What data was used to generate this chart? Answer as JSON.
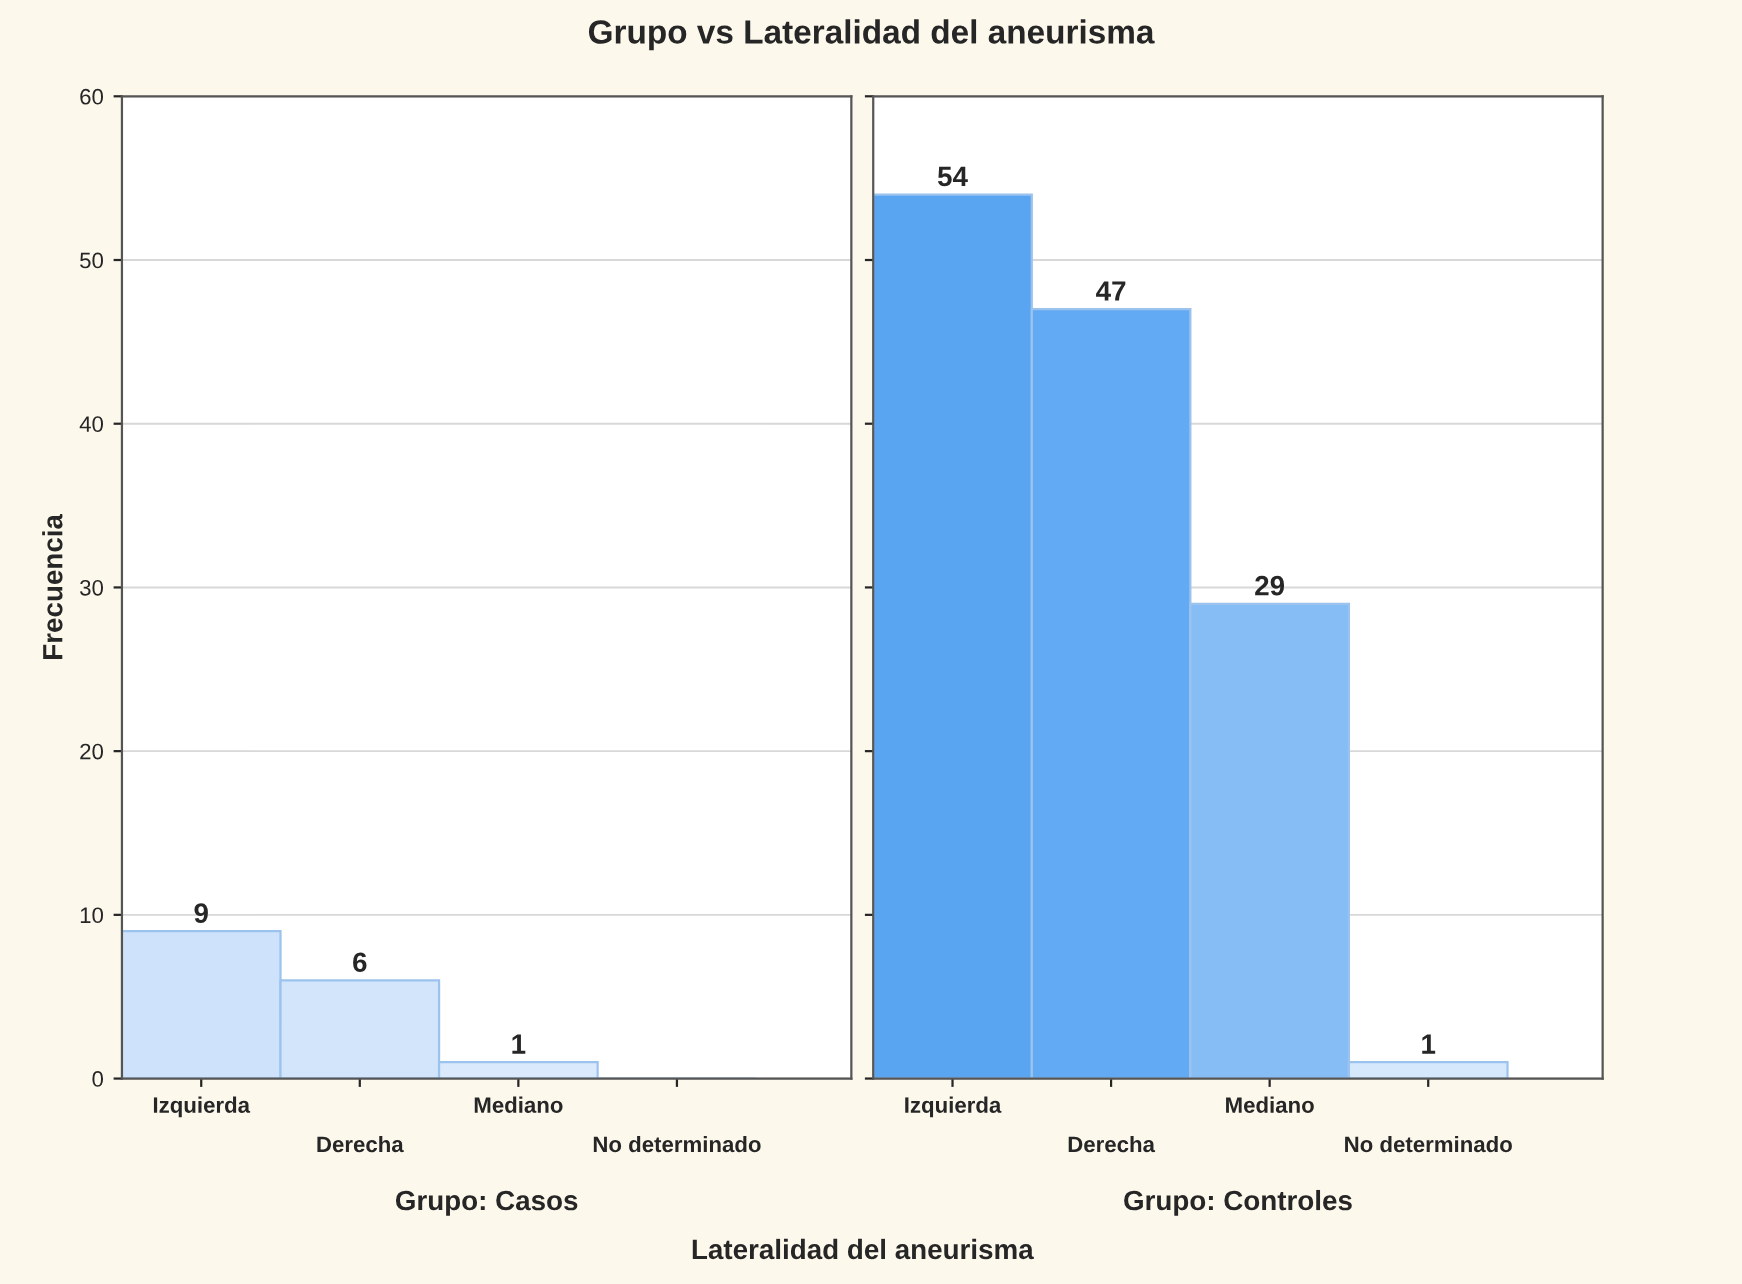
{
  "chart_data": [
    {
      "type": "bar",
      "title": "Grupo vs Lateralidad del aneurisma",
      "xlabel": "Grupo: Casos",
      "ylabel": "Frecuencia",
      "annotations": [
        "Lateralidad del aneurisma"
      ],
      "categories": [
        "Izquierda",
        "Derecha",
        "Mediano",
        "No determinado"
      ],
      "values": [
        9,
        6,
        1,
        0
      ],
      "colors": [
        "#cfe2fb",
        "#d3e5fb",
        "#dbe9fc",
        "#dbe9fc"
      ],
      "value_labels": [
        "9",
        "6",
        "1",
        null
      ],
      "ylim": [
        0,
        60
      ],
      "yticks": [
        0,
        10,
        20,
        30,
        40,
        50,
        60
      ],
      "grid": "y"
    },
    {
      "type": "bar",
      "xlabel": "Grupo: Controles",
      "categories": [
        "Izquierda",
        "Derecha",
        "Mediano",
        "No determinado"
      ],
      "values": [
        54,
        47,
        29,
        1
      ],
      "colors": [
        "#5aa5f2",
        "#62aaf3",
        "#86bdf5",
        "#d6e8fc"
      ],
      "data_labels": true,
      "ylim": [
        0,
        60
      ],
      "yticks": [
        0,
        10,
        20,
        30,
        40,
        50,
        60
      ],
      "grid": "y",
      "tick_labels": "x"
    }
  ]
}
